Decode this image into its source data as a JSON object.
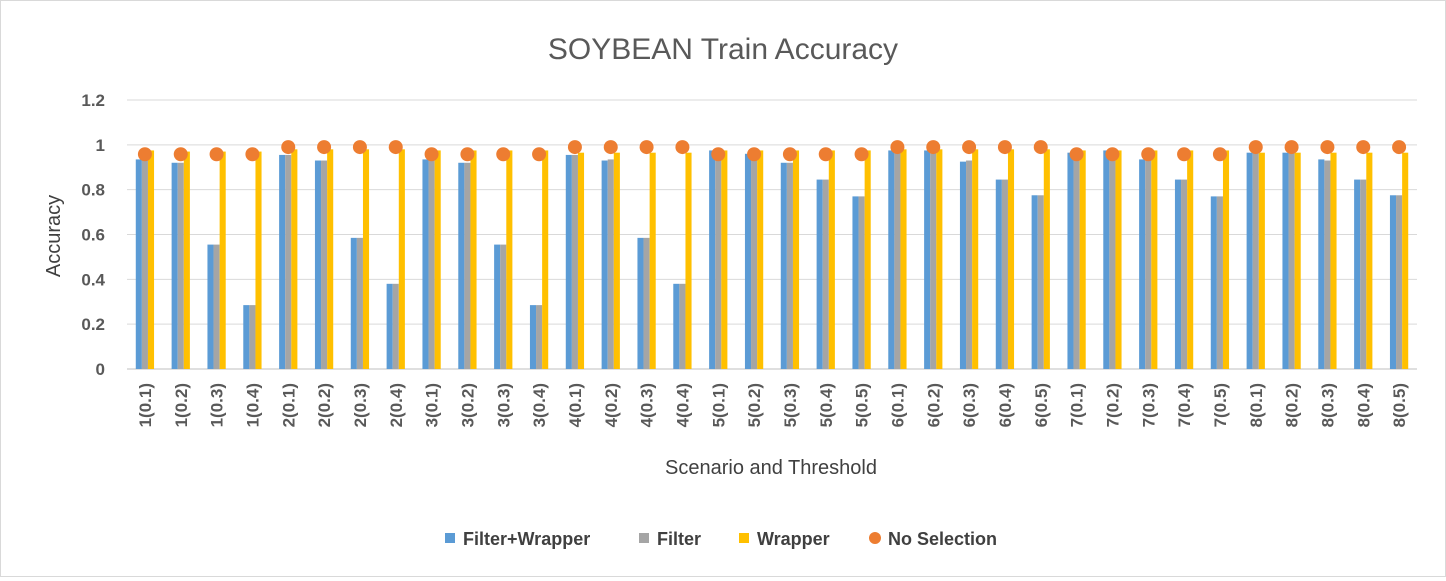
{
  "chart_data": {
    "type": "bar",
    "title": "SOYBEAN Train Accuracy",
    "xlabel": "Scenario and Threshold",
    "ylabel": "Accuracy",
    "ylim": [
      0,
      1.2
    ],
    "yticks": [
      "0",
      "0.2",
      "0.4",
      "0.6",
      "0.8",
      "1",
      "1.2"
    ],
    "grid": true,
    "legend_position": "bottom",
    "categories": [
      "1(0.1)",
      "1(0.2)",
      "1(0.3)",
      "1(0.4)",
      "2(0.1)",
      "2(0.2)",
      "2(0.3)",
      "2(0.4)",
      "3(0.1)",
      "3(0.2)",
      "3(0.3)",
      "3(0.4)",
      "4(0.1)",
      "4(0.2)",
      "4(0.3)",
      "4(0.4)",
      "5(0.1)",
      "5(0.2)",
      "5(0.3)",
      "5(0.4)",
      "5(0.5)",
      "6(0.1)",
      "6(0.2)",
      "6(0.3)",
      "6(0.4)",
      "6(0.5)",
      "7(0.1)",
      "7(0.2)",
      "7(0.3)",
      "7(0.4)",
      "7(0.5)",
      "8(0.1)",
      "8(0.2)",
      "8(0.3)",
      "8(0.4)",
      "8(0.5)"
    ],
    "series": [
      {
        "name": "Filter+Wrapper",
        "kind": "bar",
        "color": "#5B9BD5",
        "values": [
          0.935,
          0.92,
          0.555,
          0.285,
          0.955,
          0.93,
          0.585,
          0.38,
          0.935,
          0.92,
          0.555,
          0.285,
          0.955,
          0.93,
          0.585,
          0.38,
          0.975,
          0.96,
          0.92,
          0.845,
          0.77,
          0.975,
          0.975,
          0.925,
          0.845,
          0.775,
          0.965,
          0.975,
          0.935,
          0.845,
          0.77,
          0.965,
          0.965,
          0.935,
          0.845,
          0.775
        ]
      },
      {
        "name": "Filter",
        "kind": "bar",
        "color": "#A5A5A5",
        "values": [
          0.935,
          0.92,
          0.555,
          0.285,
          0.955,
          0.93,
          0.585,
          0.38,
          0.935,
          0.92,
          0.555,
          0.285,
          0.955,
          0.935,
          0.585,
          0.38,
          0.975,
          0.96,
          0.92,
          0.845,
          0.77,
          0.975,
          0.975,
          0.93,
          0.845,
          0.775,
          0.965,
          0.975,
          0.935,
          0.845,
          0.77,
          0.965,
          0.965,
          0.93,
          0.845,
          0.775
        ]
      },
      {
        "name": "Wrapper",
        "kind": "bar",
        "color": "#FFC000",
        "values": [
          0.975,
          0.97,
          0.97,
          0.97,
          0.98,
          0.98,
          0.98,
          0.98,
          0.975,
          0.975,
          0.975,
          0.975,
          0.965,
          0.965,
          0.965,
          0.965,
          0.975,
          0.975,
          0.975,
          0.975,
          0.975,
          0.98,
          0.98,
          0.98,
          0.98,
          0.98,
          0.975,
          0.975,
          0.975,
          0.975,
          0.975,
          0.965,
          0.965,
          0.965,
          0.965,
          0.965
        ]
      },
      {
        "name": "No Selection",
        "kind": "marker",
        "color": "#ED7D31",
        "values": [
          0.958,
          0.958,
          0.958,
          0.958,
          0.99,
          0.99,
          0.99,
          0.99,
          0.958,
          0.958,
          0.958,
          0.958,
          0.99,
          0.99,
          0.99,
          0.99,
          0.958,
          0.958,
          0.958,
          0.958,
          0.958,
          0.99,
          0.99,
          0.99,
          0.99,
          0.99,
          0.958,
          0.958,
          0.958,
          0.958,
          0.958,
          0.99,
          0.99,
          0.99,
          0.99,
          0.99
        ]
      }
    ]
  }
}
